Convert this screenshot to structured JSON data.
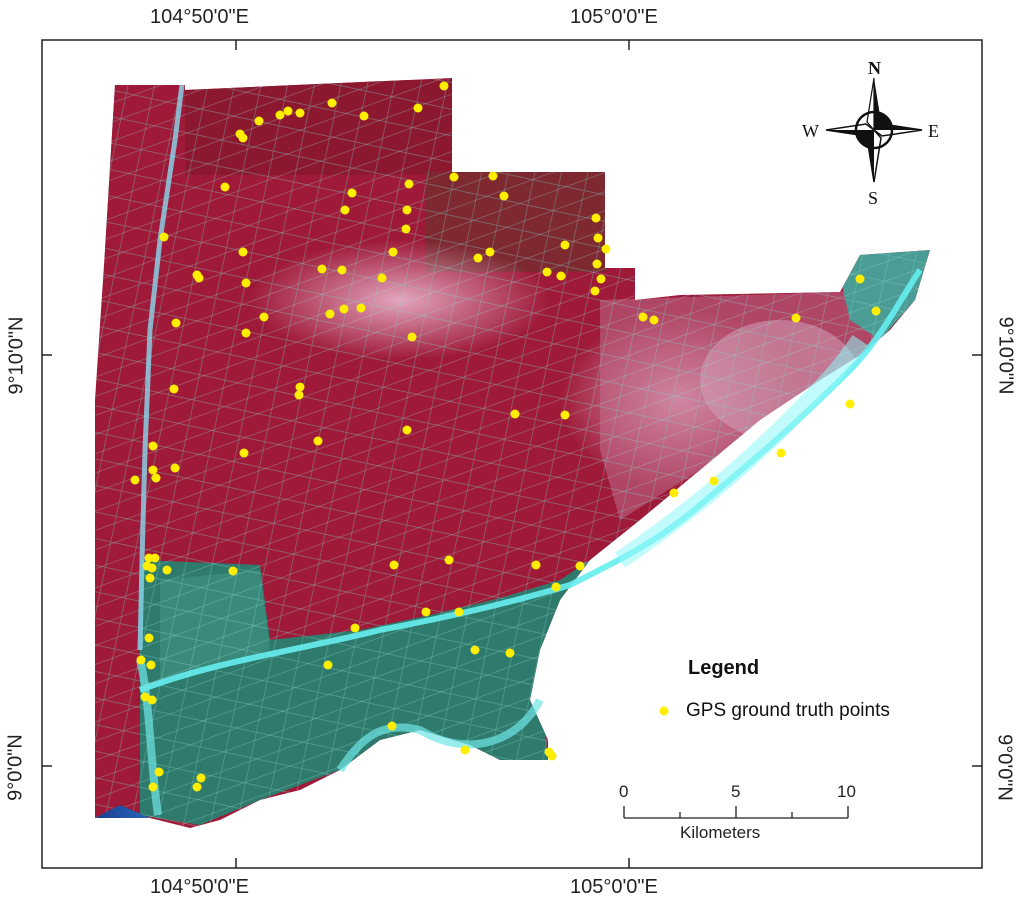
{
  "coordinates": {
    "lon_left_top": "104°50'0\"E",
    "lon_right_top": "105°0'0\"E",
    "lon_left_bottom": "104°50'0\"E",
    "lon_right_bottom": "105°0'0\"E",
    "lat_upper_left": "9°10'0\"N",
    "lat_lower_left": "9°0'0\"N",
    "lat_upper_right": "9°10'0\"N",
    "lat_lower_right": "9°0'0\"N"
  },
  "compass": {
    "north": "N",
    "south": "S",
    "east": "E",
    "west": "W"
  },
  "legend": {
    "title": "Legend",
    "item_label": "GPS ground truth points",
    "item_color": "#ffee00"
  },
  "scale_bar": {
    "tick_0": "0",
    "tick_1": "5",
    "tick_2": "10",
    "unit": "Kilometers"
  },
  "colors": {
    "vegetation": "#b01a3a",
    "water": "#1e4fa0",
    "aquaculture": "#2f8a78",
    "cyan_water": "#5fe8ee",
    "point": "#ffee00"
  }
}
